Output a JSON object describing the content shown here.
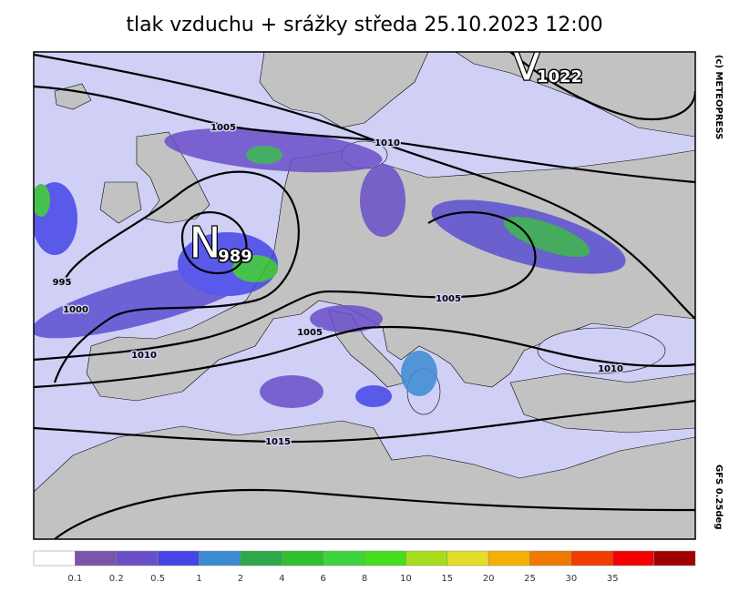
{
  "title": "tlak vzduchu + srážky  středa 25.10.2023 12:00",
  "credit": "(c) METEOPRESS",
  "model": "GFS 0.25deg",
  "centers": [
    {
      "letter": "N",
      "value": "989"
    },
    {
      "letter": "V",
      "value": "1022"
    }
  ],
  "isobar_labels": [
    "1005",
    "1010",
    "995",
    "1000",
    "1010",
    "1005",
    "1005",
    "1010",
    "1015"
  ],
  "legend": {
    "colors": [
      "#ffffff",
      "#7a55a8",
      "#6a4fc8",
      "#4444e8",
      "#3b8bd0",
      "#2ea84a",
      "#2fbf2f",
      "#3ed43e",
      "#46dd1e",
      "#a8dd1e",
      "#e4dd2a",
      "#f4b000",
      "#f07a00",
      "#f03c00",
      "#f40000",
      "#a00000"
    ],
    "labels": [
      "0.1",
      "0.2",
      "0.5",
      "1",
      "2",
      "4",
      "6",
      "8",
      "10",
      "15",
      "20",
      "25",
      "30",
      "35"
    ]
  }
}
